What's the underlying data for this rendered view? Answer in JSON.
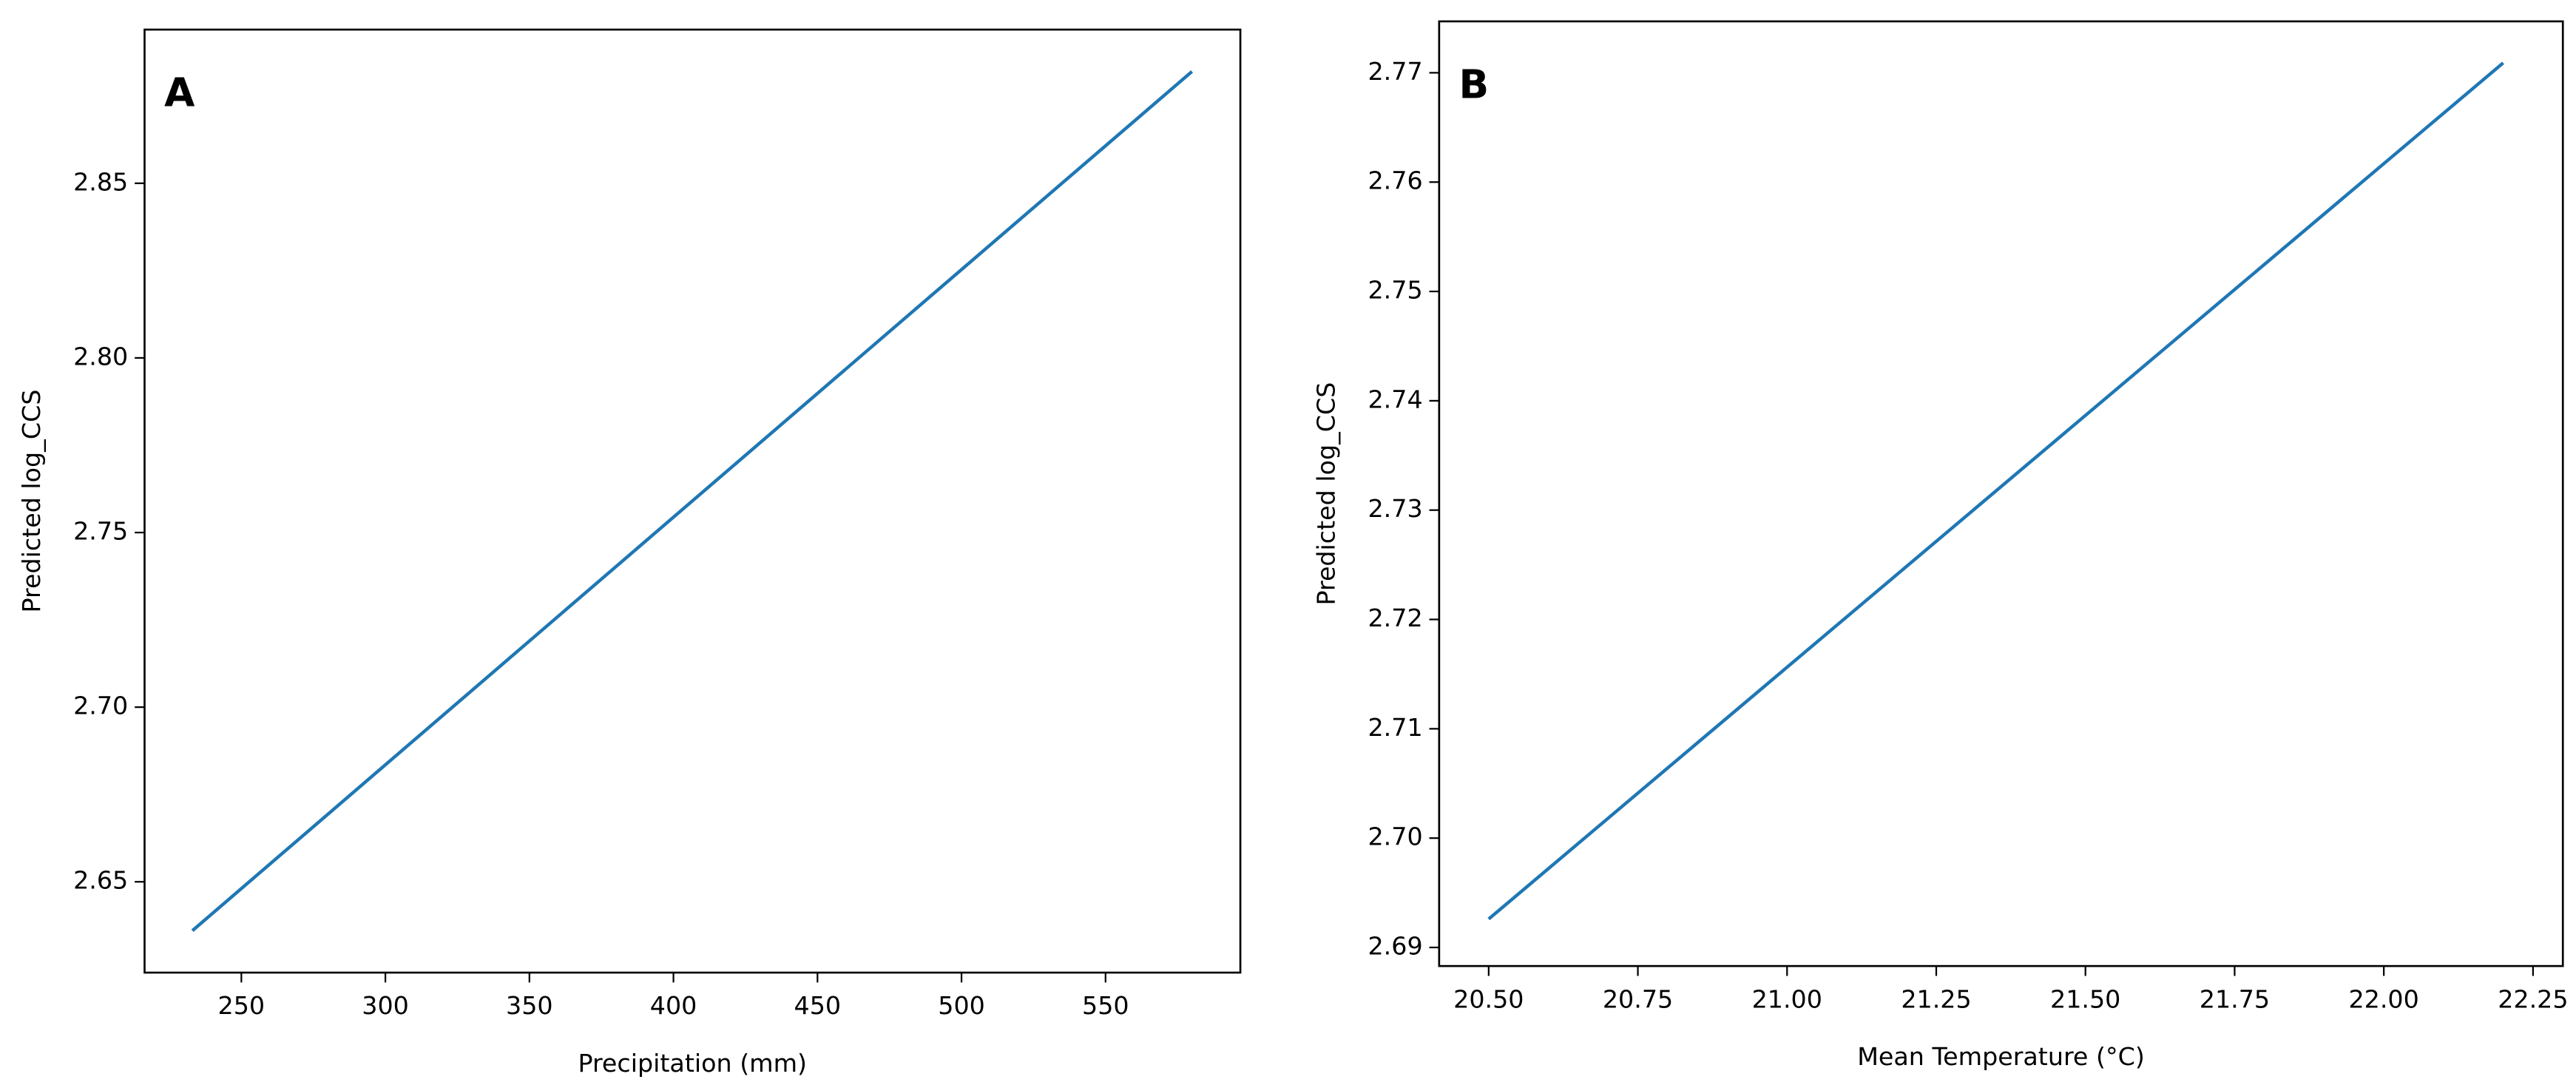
{
  "chart_data": [
    {
      "type": "line",
      "annotation": "A",
      "xlabel": "Precipitation (mm)",
      "ylabel": "Predicted log_CCS",
      "x": [
        233,
        580
      ],
      "values": [
        2.636,
        2.882
      ],
      "color": "#1f77b4",
      "xlim": [
        216.4,
        596.8
      ],
      "ylim": [
        2.624,
        2.894
      ],
      "xticks": [
        250,
        300,
        350,
        400,
        450,
        500,
        550
      ],
      "yticks": [
        2.65,
        {
          "value": 2.7,
          "label": "2.70"
        },
        2.75,
        {
          "value": 2.8,
          "label": "2.80"
        },
        2.85
      ]
    },
    {
      "type": "line",
      "annotation": "B",
      "xlabel": "Mean Temperature (°C)",
      "ylabel": "Predicted log_CCS",
      "x": [
        20.5,
        22.2
      ],
      "values": [
        2.6926,
        2.7709
      ],
      "color": "#1f77b4",
      "xlim": [
        20.417,
        22.3
      ],
      "ylim": [
        2.6883,
        2.7747
      ],
      "xticks": [
        {
          "value": 20.5,
          "label": "20.50"
        },
        20.75,
        {
          "value": 21,
          "label": "21.00"
        },
        21.25,
        {
          "value": 21.5,
          "label": "21.50"
        },
        21.75,
        {
          "value": 22,
          "label": "22.00"
        },
        22.25
      ],
      "yticks": [
        2.69,
        {
          "value": 2.7,
          "label": "2.70"
        },
        2.71,
        2.72,
        2.73,
        2.74,
        2.75,
        2.76,
        2.77
      ]
    }
  ]
}
